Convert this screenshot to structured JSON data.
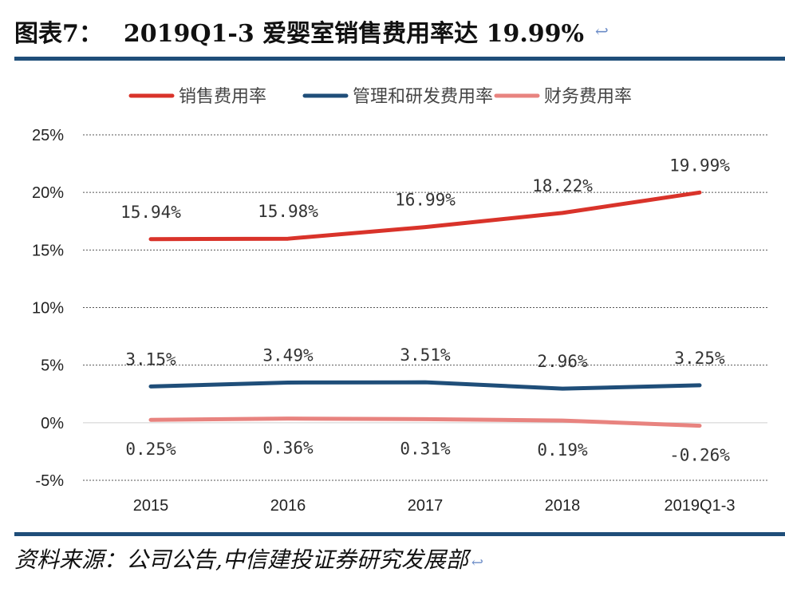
{
  "header": {
    "figure_no": "图表7：",
    "title_text": "2019Q1-3 爱婴室销售费用率达 19.99%",
    "return_symbol": "↩"
  },
  "footer": {
    "source": "资料来源：公司公告,中信建投证券研究发展部"
  },
  "chart_data": {
    "type": "line",
    "title": "2019Q1-3 爱婴室销售费用率达 19.99%",
    "xlabel": "",
    "ylabel": "",
    "categories": [
      "2015",
      "2016",
      "2017",
      "2018",
      "2019Q1-3"
    ],
    "ylim": [
      -5,
      25
    ],
    "yticks": [
      -5,
      0,
      5,
      10,
      15,
      20,
      25
    ],
    "ytick_labels": [
      "-5%",
      "0%",
      "5%",
      "10%",
      "15%",
      "20%",
      "25%"
    ],
    "grid": "horizontal dashed",
    "legend_position": "top",
    "series": [
      {
        "name": "销售费用率",
        "color": "#d9332a",
        "values": [
          15.94,
          15.98,
          16.99,
          18.22,
          19.99
        ],
        "labels": [
          "15.94%",
          "15.98%",
          "16.99%",
          "18.22%",
          "19.99%"
        ],
        "label_side": "above"
      },
      {
        "name": "管理和研发费用率",
        "color": "#1f4e79",
        "values": [
          3.15,
          3.49,
          3.51,
          2.96,
          3.25
        ],
        "labels": [
          "3.15%",
          "3.49%",
          "3.51%",
          "2.96%",
          "3.25%"
        ],
        "label_side": "above"
      },
      {
        "name": "财务费用率",
        "color": "#e8837f",
        "values": [
          0.25,
          0.36,
          0.31,
          0.19,
          -0.26
        ],
        "labels": [
          "0.25%",
          "0.36%",
          "0.31%",
          "0.19%",
          "-0.26%"
        ],
        "label_side": "below"
      }
    ]
  }
}
